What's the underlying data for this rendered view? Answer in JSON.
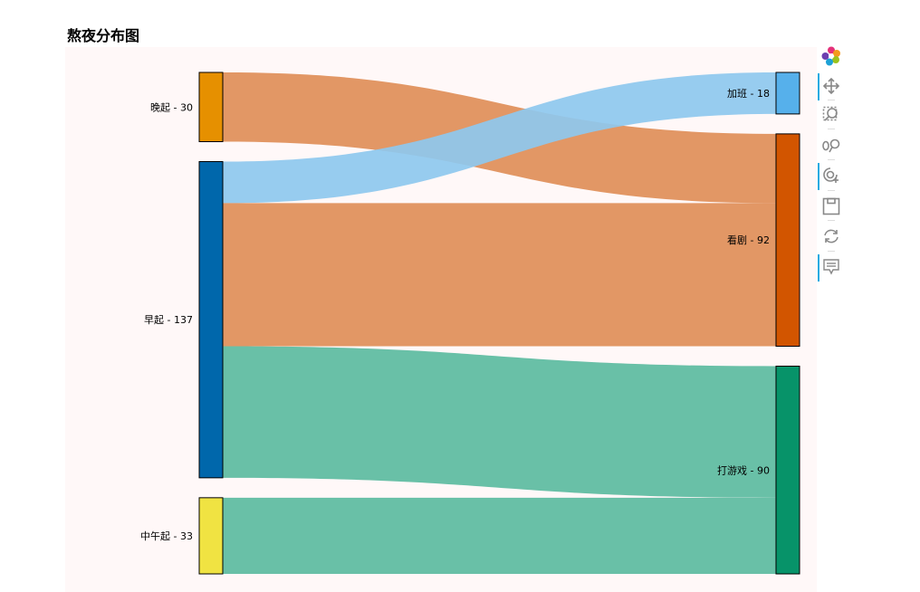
{
  "title": "熬夜分布图",
  "toolbar": {
    "logo": "bokeh-logo-icon",
    "tools": [
      "pan-icon",
      "box-zoom-icon",
      "wheel-zoom-icon",
      "tap-icon",
      "save-icon",
      "reset-icon",
      "hover-icon"
    ]
  },
  "chart_data": {
    "type": "sankey",
    "title": "熬夜分布图",
    "nodes": [
      {
        "id": "晚起",
        "label": "晚起 - 30",
        "value": 30,
        "side": "source",
        "color": "#e69000"
      },
      {
        "id": "早起",
        "label": "早起 - 137",
        "value": 137,
        "side": "source",
        "color": "#0067ab"
      },
      {
        "id": "中午起",
        "label": "中午起 - 33",
        "value": 33,
        "side": "source",
        "color": "#f0e342"
      },
      {
        "id": "加班",
        "label": "加班 - 18",
        "value": 18,
        "side": "target",
        "color": "#56b0eb"
      },
      {
        "id": "看剧",
        "label": "看剧 - 92",
        "value": 92,
        "side": "target",
        "color": "#d25500"
      },
      {
        "id": "打游戏",
        "label": "打游戏 - 90",
        "value": 90,
        "side": "target",
        "color": "#079369"
      }
    ],
    "links": [
      {
        "source": "晚起",
        "target": "看剧",
        "value": 30,
        "color": "#e08e58"
      },
      {
        "source": "早起",
        "target": "加班",
        "value": 18,
        "color": "#8ec8ee"
      },
      {
        "source": "早起",
        "target": "看剧",
        "value": 62,
        "color": "#e08e58"
      },
      {
        "source": "早起",
        "target": "打游戏",
        "value": 57,
        "color": "#5cbba0"
      },
      {
        "source": "中午起",
        "target": "打游戏",
        "value": 33,
        "color": "#5cbba0"
      }
    ]
  }
}
